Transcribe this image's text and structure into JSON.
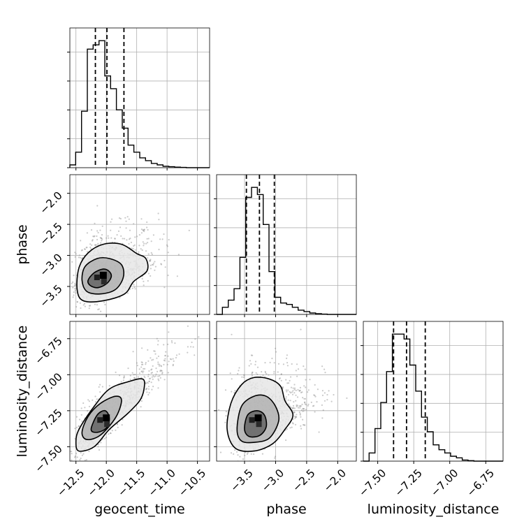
{
  "chart_data": {
    "type": "corner",
    "grid": true,
    "parameters": [
      "geocent_time",
      "phase",
      "luminosity_distance"
    ],
    "xlabels": [
      "geocent_time",
      "phase",
      "luminosity_distance"
    ],
    "ylabels": [
      "",
      "phase",
      "luminosity_distance"
    ],
    "ranges": [
      [
        -12.6,
        -10.3
      ],
      [
        -3.95,
        -1.7
      ],
      [
        -7.6,
        -6.63
      ]
    ],
    "ticks": {
      "geocent_time": [
        -12.5,
        -12.0,
        -11.5,
        -11.0,
        -10.5
      ],
      "phase": [
        -3.5,
        -3.0,
        -2.5,
        -2.0
      ],
      "luminosity_distance": [
        -7.5,
        -7.25,
        -7.0,
        -6.75
      ]
    },
    "tick_labels": {
      "geocent_time": [
        "−12.5",
        "−12.0",
        "−11.5",
        "−11.0",
        "−10.5"
      ],
      "phase": [
        "−3.5",
        "−3.0",
        "−2.5",
        "−2.0"
      ],
      "luminosity_distance": [
        "−7.50",
        "−7.25",
        "−7.00",
        "−6.75"
      ]
    },
    "ytick_labels": {
      "phase": [
        "−3.5",
        "−3.0",
        "−2.5",
        "−2.0"
      ],
      "luminosity_distance": [
        "−7.50",
        "−7.25",
        "−7.00",
        "−6.75"
      ]
    },
    "quantiles": {
      "geocent_time": [
        -12.18,
        -11.99,
        -11.71
      ],
      "phase": [
        -3.47,
        -3.26,
        -3.02
      ],
      "luminosity_distance": [
        -7.39,
        -7.3,
        -7.17
      ]
    },
    "histograms": {
      "geocent_time": {
        "start": -12.6,
        "bin_width": 0.0958,
        "counts": [
          0.02,
          0.11,
          0.4,
          0.84,
          0.87,
          0.9,
          0.65,
          0.56,
          0.41,
          0.28,
          0.16,
          0.11,
          0.07,
          0.05,
          0.03,
          0.02,
          0.01,
          0.007,
          0.004,
          0.002,
          0,
          0,
          0,
          0
        ]
      },
      "phase": {
        "start": -3.95,
        "bin_width": 0.0938,
        "counts": [
          0,
          0.05,
          0.1,
          0.18,
          0.4,
          0.82,
          0.89,
          0.84,
          0.63,
          0.3,
          0.12,
          0.08,
          0.07,
          0.05,
          0.03,
          0.02,
          0.01,
          0.005,
          0.002,
          0,
          0,
          0,
          0,
          0
        ]
      },
      "luminosity_distance": {
        "start": -7.6,
        "bin_width": 0.0404,
        "counts": [
          0,
          0.05,
          0.2,
          0.36,
          0.55,
          0.78,
          0.78,
          0.75,
          0.59,
          0.43,
          0.27,
          0.18,
          0.1,
          0.07,
          0.05,
          0.03,
          0.02,
          0.007,
          0.003,
          0,
          0,
          0,
          0,
          0
        ]
      }
    },
    "contours": {
      "phase_vs_geocent_time": [
        [
          [
            -12.3,
            -3.4
          ],
          [
            -12.2,
            -3.28
          ],
          [
            -12.05,
            -3.22
          ],
          [
            -11.95,
            -3.26
          ],
          [
            -11.92,
            -3.35
          ],
          [
            -12.0,
            -3.46
          ],
          [
            -12.15,
            -3.52
          ],
          [
            -12.27,
            -3.48
          ]
        ],
        [
          [
            -12.4,
            -3.4
          ],
          [
            -12.35,
            -3.18
          ],
          [
            -12.15,
            -3.05
          ],
          [
            -11.95,
            -3.05
          ],
          [
            -11.75,
            -3.15
          ],
          [
            -11.72,
            -3.35
          ],
          [
            -11.85,
            -3.55
          ],
          [
            -12.1,
            -3.62
          ],
          [
            -12.32,
            -3.58
          ]
        ],
        [
          [
            -12.48,
            -3.55
          ],
          [
            -12.45,
            -3.2
          ],
          [
            -12.3,
            -2.96
          ],
          [
            -12.05,
            -2.82
          ],
          [
            -11.75,
            -2.82
          ],
          [
            -11.5,
            -2.97
          ],
          [
            -11.35,
            -3.05
          ],
          [
            -11.33,
            -3.25
          ],
          [
            -11.55,
            -3.42
          ],
          [
            -11.7,
            -3.62
          ],
          [
            -12.05,
            -3.73
          ],
          [
            -12.38,
            -3.73
          ]
        ]
      ],
      "luminosity_distance_vs_geocent_time": [
        [
          [
            -12.25,
            -7.38
          ],
          [
            -12.15,
            -7.28
          ],
          [
            -12.02,
            -7.25
          ],
          [
            -11.95,
            -7.3
          ],
          [
            -12.0,
            -7.37
          ],
          [
            -12.15,
            -7.4
          ]
        ],
        [
          [
            -12.4,
            -7.4
          ],
          [
            -12.3,
            -7.29
          ],
          [
            -12.1,
            -7.2
          ],
          [
            -11.85,
            -7.15
          ],
          [
            -11.75,
            -7.18
          ],
          [
            -11.85,
            -7.3
          ],
          [
            -12.1,
            -7.42
          ],
          [
            -12.32,
            -7.45
          ]
        ],
        [
          [
            -12.5,
            -7.47
          ],
          [
            -12.45,
            -7.38
          ],
          [
            -12.2,
            -7.22
          ],
          [
            -11.95,
            -7.1
          ],
          [
            -11.65,
            -7.05
          ],
          [
            -11.4,
            -7.03
          ],
          [
            -11.38,
            -7.1
          ],
          [
            -11.45,
            -7.18
          ],
          [
            -11.65,
            -7.27
          ],
          [
            -11.95,
            -7.38
          ],
          [
            -12.2,
            -7.5
          ],
          [
            -12.45,
            -7.53
          ]
        ]
      ],
      "luminosity_distance_vs_phase": [
        [
          [
            -3.5,
            -7.38
          ],
          [
            -3.45,
            -7.28
          ],
          [
            -3.3,
            -7.25
          ],
          [
            -3.18,
            -7.28
          ],
          [
            -3.15,
            -7.36
          ],
          [
            -3.25,
            -7.42
          ],
          [
            -3.42,
            -7.43
          ]
        ],
        [
          [
            -3.62,
            -7.38
          ],
          [
            -3.55,
            -7.22
          ],
          [
            -3.35,
            -7.15
          ],
          [
            -3.15,
            -7.15
          ],
          [
            -3.0,
            -7.22
          ],
          [
            -2.95,
            -7.32
          ],
          [
            -3.1,
            -7.44
          ],
          [
            -3.35,
            -7.47
          ],
          [
            -3.55,
            -7.46
          ]
        ],
        [
          [
            -3.78,
            -7.38
          ],
          [
            -3.72,
            -7.2
          ],
          [
            -3.55,
            -7.07
          ],
          [
            -3.35,
            -7.02
          ],
          [
            -3.1,
            -7.03
          ],
          [
            -2.92,
            -7.08
          ],
          [
            -2.85,
            -7.18
          ],
          [
            -2.72,
            -7.28
          ],
          [
            -2.85,
            -7.38
          ],
          [
            -3.05,
            -7.48
          ],
          [
            -3.35,
            -7.53
          ],
          [
            -3.65,
            -7.51
          ]
        ]
      ]
    }
  }
}
